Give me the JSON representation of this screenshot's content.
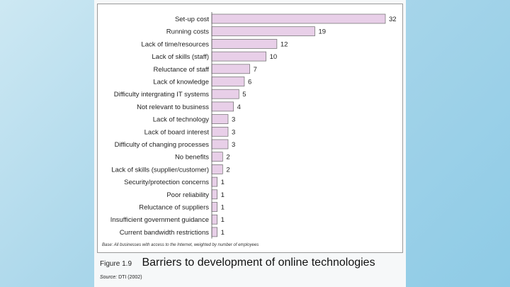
{
  "figure": {
    "label": "Figure 1.9",
    "title": "Barriers to development of online technologies",
    "source_label": "Source:",
    "source_text": "DTI (2002)"
  },
  "chart_data": {
    "type": "bar",
    "orientation": "horizontal",
    "categories": [
      "Set-up cost",
      "Running costs",
      "Lack of time/resources",
      "Lack of skills (staff)",
      "Reluctance of staff",
      "Lack of knowledge",
      "Difficulty intergrating IT systems",
      "Not relevant to business",
      "Lack of technology",
      "Lack of board interest",
      "Difficulty of changing processes",
      "No benefits",
      "Lack of skills (supplier/customer)",
      "Security/protection concerns",
      "Poor reliability",
      "Reluctance of suppliers",
      "Insufficient government guidance",
      "Current bandwidth restrictions"
    ],
    "values": [
      32,
      19,
      12,
      10,
      7,
      6,
      5,
      4,
      3,
      3,
      3,
      2,
      2,
      1,
      1,
      1,
      1,
      1
    ],
    "note": "Base: All businesses with access to the Internet, weighted by number of employees",
    "bar_color": "#e8cfe8",
    "bar_edge": "#6b6b6b",
    "xlim": [
      0,
      32
    ],
    "grid": false,
    "legend": "none"
  }
}
